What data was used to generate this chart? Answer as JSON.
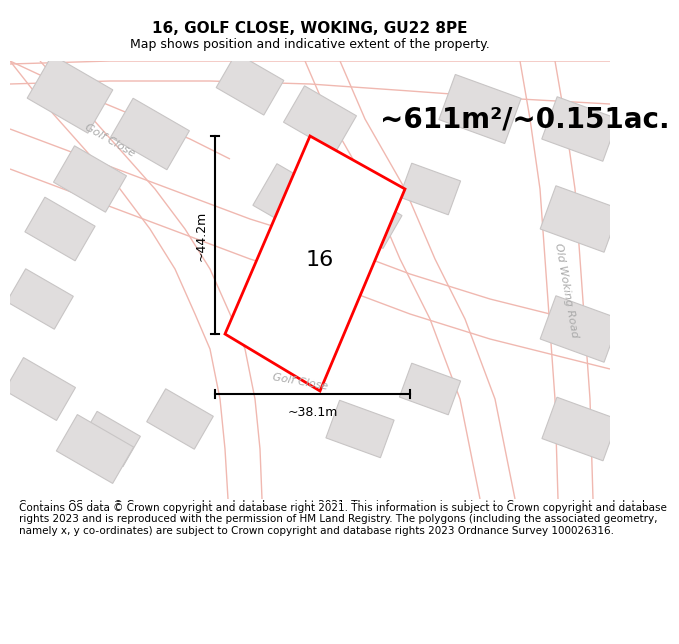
{
  "title": "16, GOLF CLOSE, WOKING, GU22 8PE",
  "subtitle": "Map shows position and indicative extent of the property.",
  "area_text": "~611m²/~0.151ac.",
  "property_number": "16",
  "dim_vertical": "~44.2m",
  "dim_horizontal": "~38.1m",
  "street_label_golf_upper": "Golf Close",
  "street_label_golf_lower": "Golf Close",
  "street_label_old_woking": "Old Woking Road",
  "footer": "Contains OS data © Crown copyright and database right 2021. This information is subject to Crown copyright and database rights 2023 and is reproduced with the permission of HM Land Registry. The polygons (including the associated geometry, namely x, y co-ordinates) are subject to Crown copyright and database rights 2023 Ordnance Survey 100026316.",
  "map_bg": "#f5f4f4",
  "road_color": "#f0b8b0",
  "building_fill": "#e0dddd",
  "building_edge": "#c8c5c5",
  "property_edge": "#ff0000",
  "title_fontsize": 11,
  "subtitle_fontsize": 9,
  "area_fontsize": 20,
  "label_fontsize": 8,
  "footer_fontsize": 7.5,
  "figsize": [
    6.0,
    6.25
  ]
}
